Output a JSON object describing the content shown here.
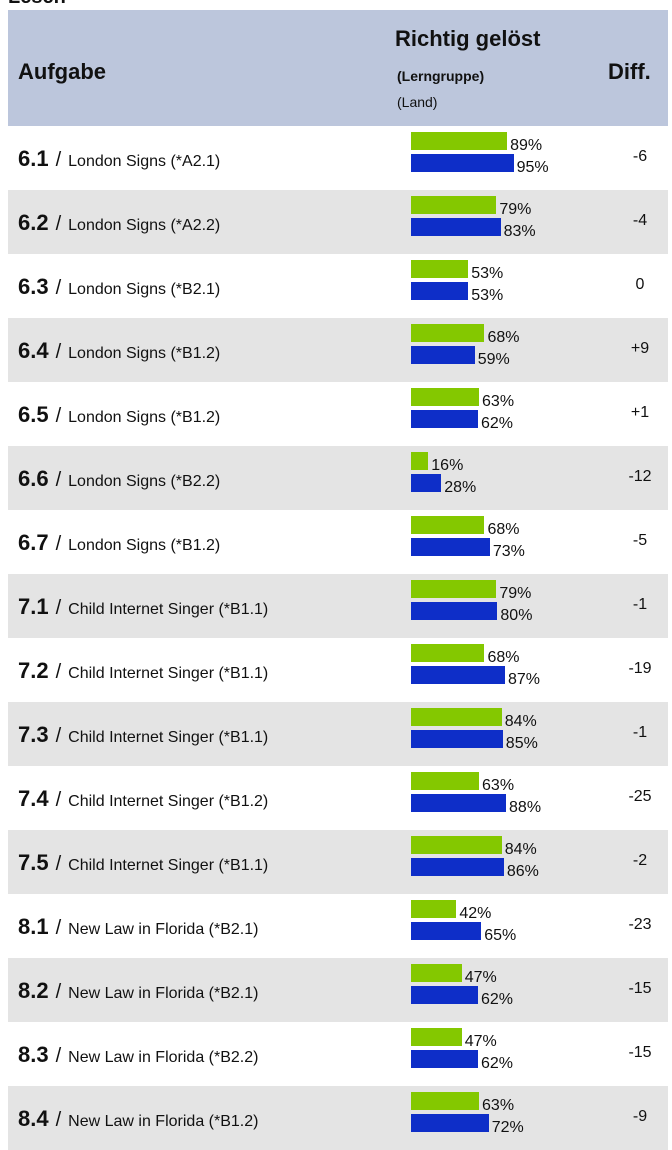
{
  "heading": "Lesen",
  "header": {
    "task": "Aufgabe",
    "score": "Richtig gelöst",
    "group": "(Lerngruppe)",
    "land": "(Land)",
    "diff": "Diff."
  },
  "separator": "/",
  "rows": [
    {
      "task": "6.1",
      "name": "London Signs (*A2.1)",
      "values": [
        89,
        95
      ],
      "value_labels": [
        "89%",
        "95%"
      ],
      "diff": "-6"
    },
    {
      "task": "6.2",
      "name": "London Signs (*A2.2)",
      "values": [
        79,
        83
      ],
      "value_labels": [
        "79%",
        "83%"
      ],
      "diff": "-4"
    },
    {
      "task": "6.3",
      "name": "London Signs (*B2.1)",
      "values": [
        53,
        53
      ],
      "value_labels": [
        "53%",
        "53%"
      ],
      "diff": "0"
    },
    {
      "task": "6.4",
      "name": "London Signs (*B1.2)",
      "values": [
        68,
        59
      ],
      "value_labels": [
        "68%",
        "59%"
      ],
      "diff": "+9"
    },
    {
      "task": "6.5",
      "name": "London Signs (*B1.2)",
      "values": [
        63,
        62
      ],
      "value_labels": [
        "63%",
        "62%"
      ],
      "diff": "+1"
    },
    {
      "task": "6.6",
      "name": "London Signs (*B2.2)",
      "values": [
        16,
        28
      ],
      "value_labels": [
        "16%",
        "28%"
      ],
      "diff": "-12"
    },
    {
      "task": "6.7",
      "name": "London Signs (*B1.2)",
      "values": [
        68,
        73
      ],
      "value_labels": [
        "68%",
        "73%"
      ],
      "diff": "-5"
    },
    {
      "task": "7.1",
      "name": "Child Internet Singer (*B1.1)",
      "values": [
        79,
        80
      ],
      "value_labels": [
        "79%",
        "80%"
      ],
      "diff": "-1"
    },
    {
      "task": "7.2",
      "name": "Child Internet Singer (*B1.1)",
      "values": [
        68,
        87
      ],
      "value_labels": [
        "68%",
        "87%"
      ],
      "diff": "-19"
    },
    {
      "task": "7.3",
      "name": "Child Internet Singer (*B1.1)",
      "values": [
        84,
        85
      ],
      "value_labels": [
        "84%",
        "85%"
      ],
      "diff": "-1"
    },
    {
      "task": "7.4",
      "name": "Child Internet Singer (*B1.2)",
      "values": [
        63,
        88
      ],
      "value_labels": [
        "63%",
        "88%"
      ],
      "diff": "-25"
    },
    {
      "task": "7.5",
      "name": "Child Internet Singer (*B1.1)",
      "values": [
        84,
        86
      ],
      "value_labels": [
        "84%",
        "86%"
      ],
      "diff": "-2"
    },
    {
      "task": "8.1",
      "name": "New Law in Florida (*B2.1)",
      "values": [
        42,
        65
      ],
      "value_labels": [
        "42%",
        "65%"
      ],
      "diff": "-23"
    },
    {
      "task": "8.2",
      "name": "New Law in Florida (*B2.1)",
      "values": [
        47,
        62
      ],
      "value_labels": [
        "47%",
        "62%"
      ],
      "diff": "-15"
    },
    {
      "task": "8.3",
      "name": "New Law in Florida (*B2.2)",
      "values": [
        47,
        62
      ],
      "value_labels": [
        "47%",
        "62%"
      ],
      "diff": "-15"
    },
    {
      "task": "8.4",
      "name": "New Law in Florida (*B1.2)",
      "values": [
        63,
        72
      ],
      "value_labels": [
        "63%",
        "72%"
      ],
      "diff": "-9"
    }
  ]
}
